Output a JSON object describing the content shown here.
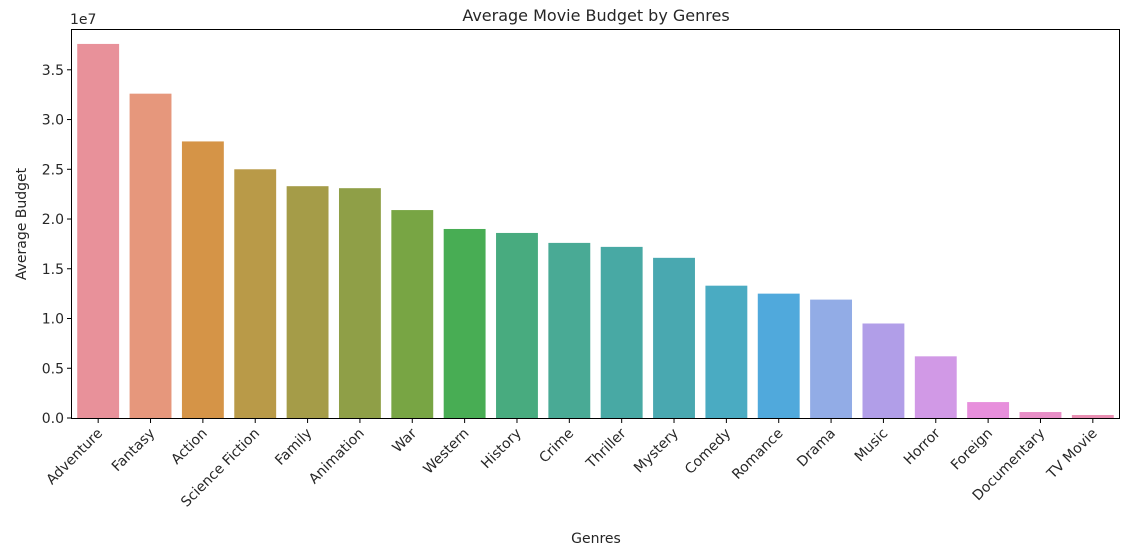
{
  "chart_data": {
    "type": "bar",
    "title": "Average Movie Budget by Genres",
    "xlabel": "Genres",
    "ylabel": "Average Budget",
    "scale_label": "1e7",
    "ylim": [
      0,
      3.9
    ],
    "yticks": [
      "0.0",
      "0.5",
      "1.0",
      "1.5",
      "2.0",
      "2.5",
      "3.0",
      "3.5"
    ],
    "grid": false,
    "categories": [
      "Adventure",
      "Fantasy",
      "Action",
      "Science Fiction",
      "Family",
      "Animation",
      "War",
      "Western",
      "History",
      "Crime",
      "Thriller",
      "Mystery",
      "Comedy",
      "Romance",
      "Drama",
      "Music",
      "Horror",
      "Foreign",
      "Documentary",
      "TV Movie"
    ],
    "values": [
      3.76,
      3.26,
      2.78,
      2.5,
      2.33,
      2.31,
      2.09,
      1.9,
      1.86,
      1.76,
      1.72,
      1.61,
      1.33,
      1.25,
      1.19,
      0.95,
      0.62,
      0.16,
      0.06,
      0.03
    ],
    "colors": [
      "#e8919a",
      "#e6977c",
      "#d59447",
      "#b99a48",
      "#a59c48",
      "#8f9f47",
      "#78a544",
      "#48ad54",
      "#48ab7f",
      "#49aa95",
      "#48a9a4",
      "#49a8b0",
      "#4aabc2",
      "#50a9dc",
      "#92ace6",
      "#b19ee8",
      "#d199e6",
      "#e78fdc",
      "#e88ec7",
      "#e98eb2"
    ]
  }
}
